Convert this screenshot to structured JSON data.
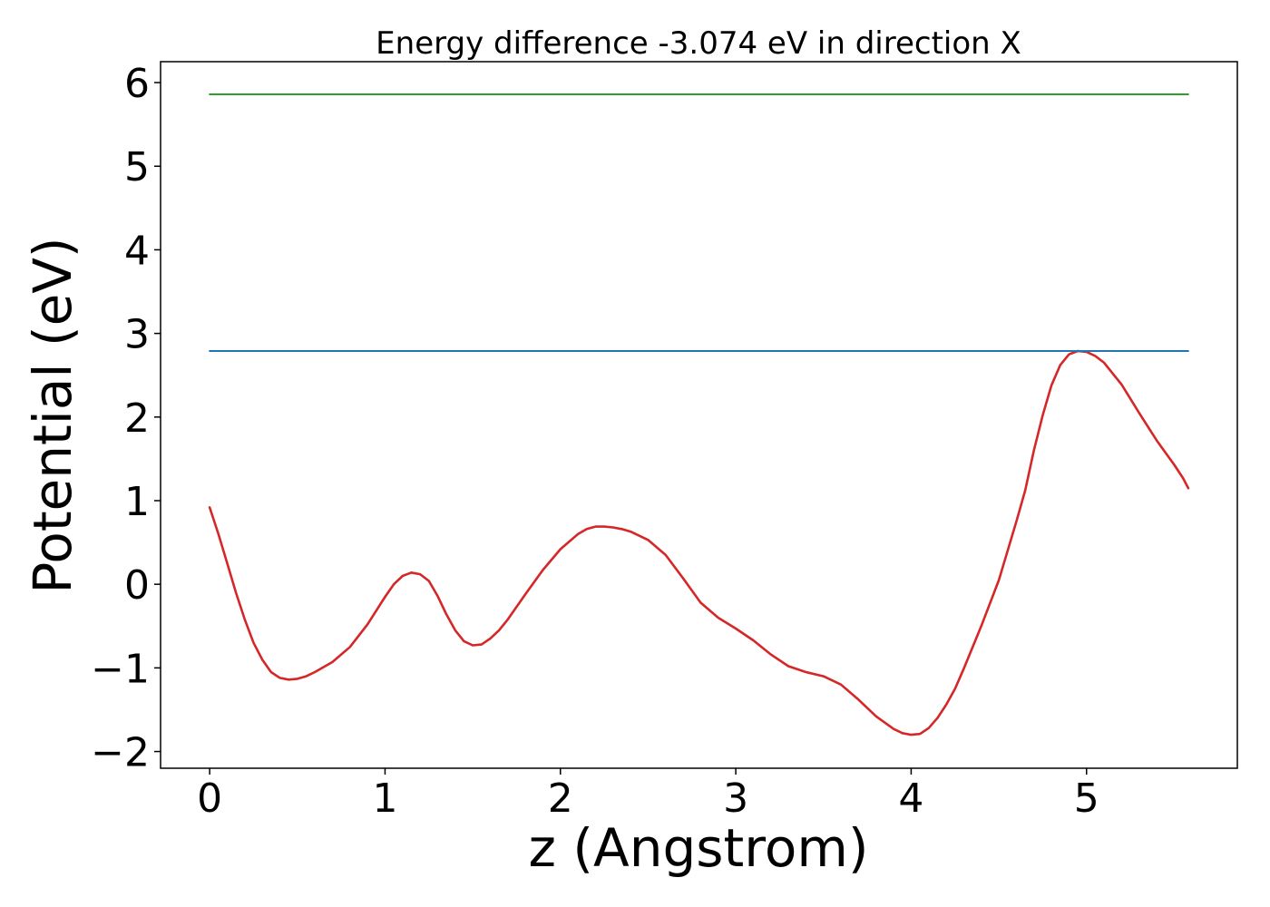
{
  "chart_data": {
    "type": "line",
    "title": "Energy difference -3.074 eV in direction X",
    "xlabel": "z (Angstrom)",
    "ylabel": "Potential (eV)",
    "xlim": [
      -0.28,
      5.86
    ],
    "ylim": [
      -2.2,
      6.25
    ],
    "xticks": [
      0,
      1,
      2,
      3,
      4,
      5
    ],
    "xtick_labels": [
      "0",
      "1",
      "2",
      "3",
      "4",
      "5"
    ],
    "yticks": [
      -2,
      -1,
      0,
      1,
      2,
      3,
      4,
      5,
      6
    ],
    "ytick_labels": [
      "−2",
      "−1",
      "0",
      "1",
      "2",
      "3",
      "4",
      "5",
      "6"
    ],
    "grid": false,
    "legend": "none",
    "series": [
      {
        "color": "#d62728",
        "x": [
          0.0,
          0.05,
          0.1,
          0.15,
          0.2,
          0.25,
          0.3,
          0.35,
          0.4,
          0.45,
          0.5,
          0.55,
          0.6,
          0.7,
          0.8,
          0.9,
          1.0,
          1.05,
          1.1,
          1.15,
          1.2,
          1.25,
          1.3,
          1.35,
          1.4,
          1.45,
          1.5,
          1.55,
          1.6,
          1.65,
          1.7,
          1.8,
          1.9,
          2.0,
          2.1,
          2.15,
          2.2,
          2.25,
          2.3,
          2.35,
          2.4,
          2.5,
          2.6,
          2.7,
          2.8,
          2.9,
          3.0,
          3.1,
          3.2,
          3.3,
          3.4,
          3.5,
          3.6,
          3.7,
          3.8,
          3.9,
          3.95,
          4.0,
          4.05,
          4.1,
          4.15,
          4.2,
          4.25,
          4.3,
          4.4,
          4.5,
          4.6,
          4.65,
          4.7,
          4.75,
          4.8,
          4.85,
          4.9,
          4.95,
          5.0,
          5.05,
          5.1,
          5.15,
          5.2,
          5.3,
          5.4,
          5.5,
          5.55,
          5.58
        ],
        "y": [
          0.92,
          0.6,
          0.25,
          -0.1,
          -0.42,
          -0.7,
          -0.9,
          -1.05,
          -1.12,
          -1.14,
          -1.13,
          -1.1,
          -1.05,
          -0.93,
          -0.75,
          -0.48,
          -0.15,
          0.0,
          0.1,
          0.14,
          0.12,
          0.04,
          -0.14,
          -0.36,
          -0.55,
          -0.68,
          -0.73,
          -0.72,
          -0.65,
          -0.55,
          -0.42,
          -0.12,
          0.17,
          0.42,
          0.6,
          0.66,
          0.69,
          0.69,
          0.68,
          0.66,
          0.63,
          0.53,
          0.35,
          0.07,
          -0.22,
          -0.4,
          -0.53,
          -0.67,
          -0.84,
          -0.98,
          -1.05,
          -1.1,
          -1.2,
          -1.38,
          -1.58,
          -1.73,
          -1.78,
          -1.8,
          -1.79,
          -1.72,
          -1.6,
          -1.44,
          -1.25,
          -1.01,
          -0.5,
          0.05,
          0.75,
          1.12,
          1.6,
          2.02,
          2.38,
          2.62,
          2.75,
          2.79,
          2.78,
          2.73,
          2.65,
          2.52,
          2.39,
          2.05,
          1.72,
          1.43,
          1.27,
          1.15
        ]
      },
      {
        "color": "#1f77b4",
        "x": [
          0.0,
          5.58
        ],
        "y": [
          2.79,
          2.79
        ]
      },
      {
        "color": "#2ca02c",
        "x": [
          0.0,
          5.58
        ],
        "y": [
          5.86,
          5.86
        ]
      }
    ]
  }
}
